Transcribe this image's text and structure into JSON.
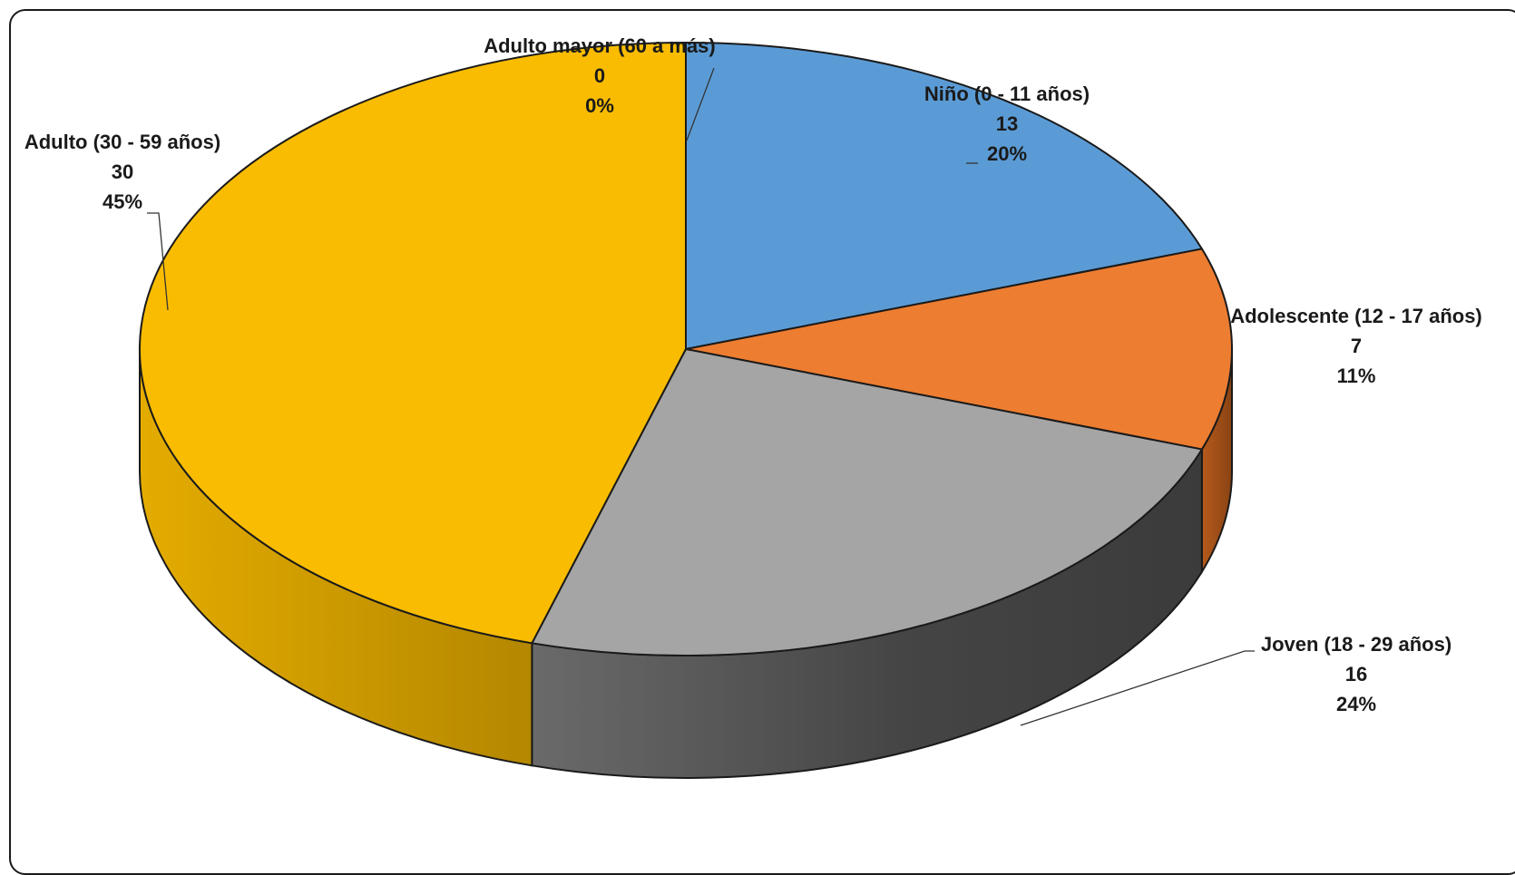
{
  "chart_data": {
    "type": "pie",
    "title": "",
    "legend": "none",
    "slices": [
      {
        "label": "Niño (0 - 11 años)",
        "value": 13,
        "percent": "20%",
        "color": "#5b9bd5"
      },
      {
        "label": "Adolescente (12 - 17 años)",
        "value": 7,
        "percent": "11%",
        "color": "#ed7d31"
      },
      {
        "label": "Joven (18 - 29 años)",
        "value": 16,
        "percent": "24%",
        "color": "#a5a5a5"
      },
      {
        "label": "Adulto (30 - 59 años)",
        "value": 30,
        "percent": "45%",
        "color": "#f9bc00"
      },
      {
        "label": "Adulto mayor (60 a más)",
        "value": 0,
        "percent": "0%",
        "color": "#4472c4"
      }
    ]
  }
}
